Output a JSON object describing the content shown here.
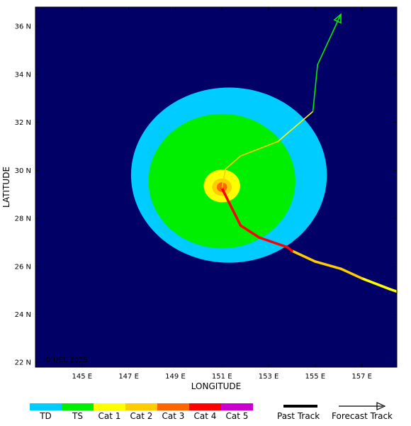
{
  "map": {
    "lon_range": [
      143,
      158.5
    ],
    "lat_range": [
      21.8,
      36.8
    ],
    "x_ticks": [
      {
        "value": 145,
        "label": "145 E"
      },
      {
        "value": 147,
        "label": "147 E"
      },
      {
        "value": 149,
        "label": "149 E"
      },
      {
        "value": 151,
        "label": "151 E"
      },
      {
        "value": 153,
        "label": "153 E"
      },
      {
        "value": 155,
        "label": "155 E"
      },
      {
        "value": 157,
        "label": "157 E"
      }
    ],
    "y_ticks": [
      {
        "value": 22,
        "label": "22 N"
      },
      {
        "value": 24,
        "label": "24 N"
      },
      {
        "value": 26,
        "label": "26 N"
      },
      {
        "value": 28,
        "label": "28 N"
      },
      {
        "value": 30,
        "label": "30 N"
      },
      {
        "value": 32,
        "label": "32 N"
      },
      {
        "value": 34,
        "label": "34 N"
      },
      {
        "value": 36,
        "label": "36 N"
      }
    ],
    "xlabel": "LONGITUDE",
    "ylabel": "LATITUDE",
    "watermark": "© UCL 2025",
    "background_color": "#000066",
    "wind_fields": [
      {
        "category": "TD",
        "color": "#00ccff",
        "center": [
          151.3,
          29.8
        ],
        "radius": [
          4.2,
          3.65
        ]
      },
      {
        "category": "TS",
        "color": "#00ee00",
        "center": [
          151.0,
          29.55
        ],
        "radius": [
          3.15,
          2.8
        ]
      },
      {
        "category": "Cat 1",
        "color": "#ffff00",
        "center": [
          151.0,
          29.35
        ],
        "radius": [
          0.78,
          0.68
        ]
      },
      {
        "category": "Cat 2",
        "color": "#ffcc00",
        "center": [
          151.0,
          29.3
        ],
        "radius": [
          0.42,
          0.36
        ]
      },
      {
        "category": "Cat 3",
        "color": "#ff6600",
        "center": [
          151.0,
          29.3
        ],
        "radius": [
          0.22,
          0.2
        ]
      }
    ],
    "past_track": [
      {
        "lon": 158.5,
        "lat": 24.95,
        "color": "#00ee00"
      },
      {
        "lon": 158.2,
        "lat": 25.05,
        "color": "#ffff00"
      },
      {
        "lon": 157.0,
        "lat": 25.5,
        "color": "#ffff00"
      },
      {
        "lon": 156.1,
        "lat": 25.9,
        "color": "#ffcc00"
      },
      {
        "lon": 155.0,
        "lat": 26.2,
        "color": "#ffcc00"
      },
      {
        "lon": 154.0,
        "lat": 26.65,
        "color": "#ffcc00"
      },
      {
        "lon": 153.8,
        "lat": 26.8,
        "color": "#ff0000"
      },
      {
        "lon": 152.6,
        "lat": 27.2,
        "color": "#ff0000"
      },
      {
        "lon": 151.8,
        "lat": 27.7,
        "color": "#ff0000"
      },
      {
        "lon": 151.0,
        "lat": 29.25,
        "color": "#ff0000"
      }
    ],
    "forecast_track": [
      {
        "lon": 151.0,
        "lat": 29.25,
        "color": "#ff6600"
      },
      {
        "lon": 151.15,
        "lat": 30.05,
        "color": "#ffcc00"
      },
      {
        "lon": 151.8,
        "lat": 30.6,
        "color": "#ffcc00"
      },
      {
        "lon": 153.4,
        "lat": 31.2,
        "color": "#ffcc00"
      },
      {
        "lon": 154.9,
        "lat": 32.45,
        "color": "#ffff00"
      },
      {
        "lon": 155.1,
        "lat": 34.4,
        "color": "#00ee00"
      },
      {
        "lon": 156.1,
        "lat": 36.5,
        "color": "#00ee00"
      }
    ]
  },
  "legend": {
    "categories": [
      {
        "label": "TD",
        "color": "#00ccff"
      },
      {
        "label": "TS",
        "color": "#00ee00"
      },
      {
        "label": "Cat 1",
        "color": "#ffff00"
      },
      {
        "label": "Cat 2",
        "color": "#ffcc00"
      },
      {
        "label": "Cat 3",
        "color": "#ff6600"
      },
      {
        "label": "Cat 4",
        "color": "#ff0000"
      },
      {
        "label": "Cat 5",
        "color": "#cc00cc"
      }
    ],
    "past_track_label": "Past Track",
    "forecast_track_label": "Forecast Track"
  }
}
